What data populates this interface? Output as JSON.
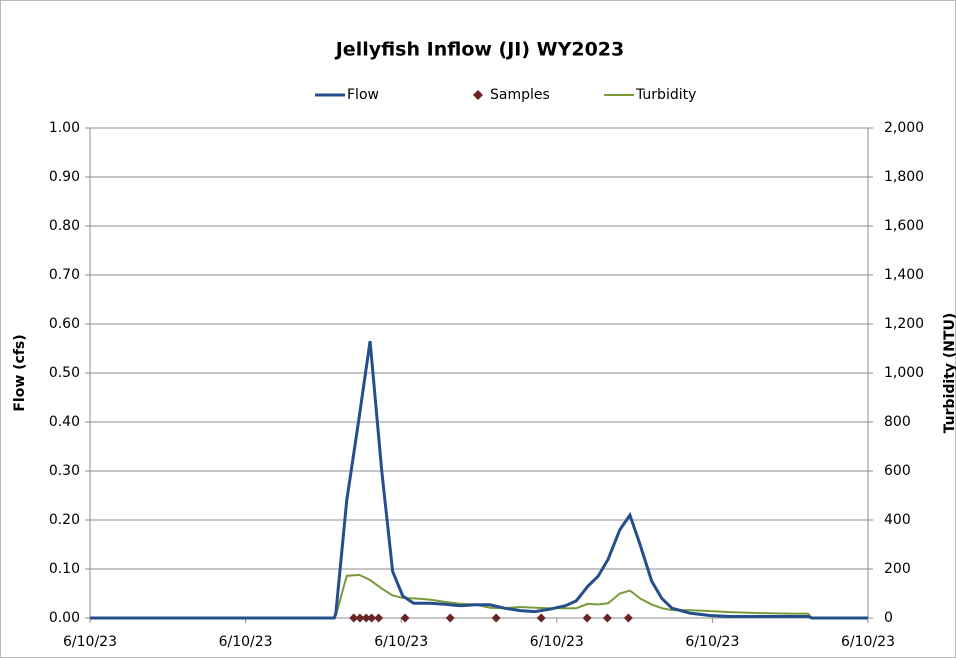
{
  "chart_data": {
    "type": "line",
    "title": "Jellyfish Inflow (JI) WY2023",
    "ylabel": "Flow (cfs)",
    "y2label": "Turbidity (NTU)",
    "x": [
      0,
      31.4,
      31.6,
      33,
      34.6,
      36,
      37.5,
      38.9,
      40.2,
      41.6,
      43.7,
      45.6,
      47.6,
      49.5,
      51.4,
      53.3,
      55.3,
      57.2,
      59.1,
      61.1,
      62.5,
      64,
      65.3,
      66.6,
      68.1,
      69.4,
      70.7,
      72.2,
      73.5,
      74.8,
      77.1,
      79.7,
      82.3,
      86.1,
      90,
      92.3,
      92.8,
      100
    ],
    "series": [
      {
        "name": "Flow",
        "color": "#254f8a",
        "values": [
          0,
          0,
          0.01,
          0.24,
          0.41,
          0.565,
          0.3,
          0.095,
          0.045,
          0.03,
          0.03,
          0.028,
          0.025,
          0.027,
          0.027,
          0.02,
          0.015,
          0.013,
          0.018,
          0.025,
          0.035,
          0.065,
          0.085,
          0.12,
          0.18,
          0.21,
          0.15,
          0.075,
          0.04,
          0.02,
          0.01,
          0.005,
          0.003,
          0.003,
          0.003,
          0.003,
          0,
          0
        ]
      },
      {
        "name": "Samples",
        "color": "#6b2424",
        "type": "scatter",
        "x": [
          33.9,
          34.7,
          35.5,
          36.2,
          37.1,
          40.5,
          46.3,
          52.2,
          58.0,
          63.9,
          66.5,
          69.2
        ],
        "values": [
          0,
          0,
          0,
          0,
          0,
          0,
          0,
          0,
          0,
          0,
          0,
          0
        ]
      },
      {
        "name": "Turbidity",
        "color": "#7a9a3a",
        "axis": "y2",
        "values": [
          0,
          0,
          10,
          172,
          176,
          155,
          120,
          92,
          82,
          80,
          75,
          66,
          58,
          55,
          42,
          40,
          45,
          42,
          40,
          40,
          40,
          58,
          55,
          60,
          100,
          112,
          80,
          55,
          40,
          32,
          32,
          28,
          24,
          20,
          18,
          18,
          0,
          0
        ]
      }
    ],
    "xlim": [
      0,
      100
    ],
    "xticks": [
      {
        "value": 0,
        "label": "6/10/23"
      },
      {
        "value": 20,
        "label": "6/10/23"
      },
      {
        "value": 40,
        "label": "6/10/23"
      },
      {
        "value": 60,
        "label": "6/10/23"
      },
      {
        "value": 80,
        "label": "6/10/23"
      },
      {
        "value": 100,
        "label": "6/10/23"
      }
    ],
    "ylim": [
      0,
      1
    ],
    "yticks": [
      {
        "value": 0,
        "label": "0.00"
      },
      {
        "value": 0.1,
        "label": "0.10"
      },
      {
        "value": 0.2,
        "label": "0.20"
      },
      {
        "value": 0.3,
        "label": "0.30"
      },
      {
        "value": 0.4,
        "label": "0.40"
      },
      {
        "value": 0.5,
        "label": "0.50"
      },
      {
        "value": 0.6,
        "label": "0.60"
      },
      {
        "value": 0.7,
        "label": "0.70"
      },
      {
        "value": 0.8,
        "label": "0.80"
      },
      {
        "value": 0.9,
        "label": "0.90"
      },
      {
        "value": 1,
        "label": "1.00"
      }
    ],
    "y2lim": [
      0,
      2000
    ],
    "y2ticks": [
      0,
      200,
      400,
      600,
      800,
      {
        "value": 1000,
        "label": "1,000"
      },
      {
        "value": 1200,
        "label": "1,200"
      },
      {
        "value": 1400,
        "label": "1,400"
      },
      {
        "value": 1600,
        "label": "1,600"
      },
      {
        "value": 1800,
        "label": "1,800"
      },
      {
        "value": 2000,
        "label": "2,000"
      }
    ],
    "grid": true,
    "legend": "top"
  }
}
